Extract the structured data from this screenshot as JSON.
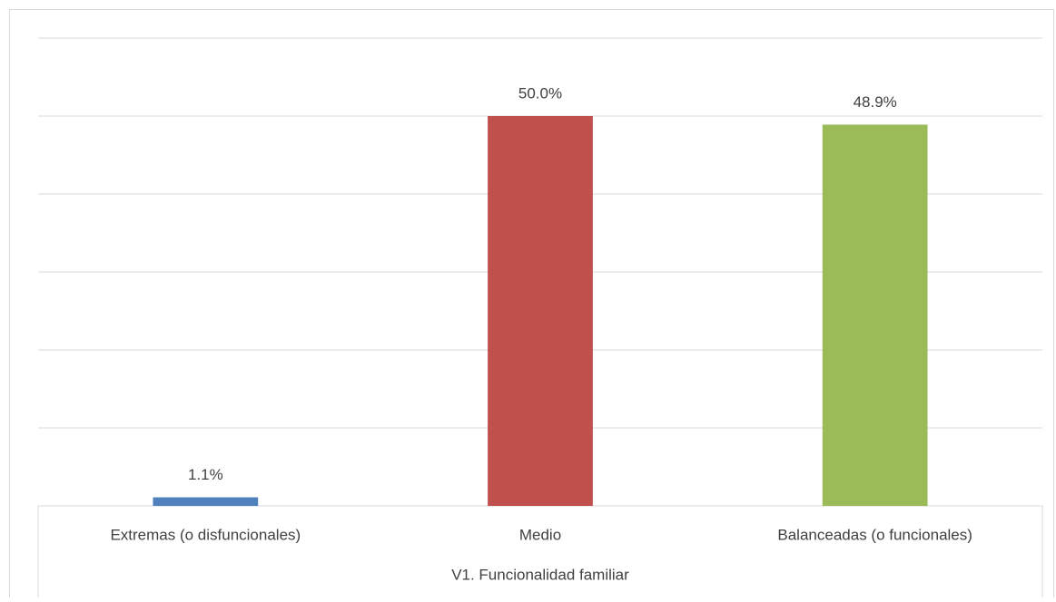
{
  "chart_data": {
    "type": "bar",
    "categories": [
      "Extremas (o disfuncionales)",
      "Medio",
      "Balanceadas (o funcionales)"
    ],
    "values": [
      1.1,
      50.0,
      48.9
    ],
    "value_labels": [
      "1.1%",
      "50.0%",
      "48.9%"
    ],
    "colors": [
      "#4f81bd",
      "#c0504d",
      "#9bbb59"
    ],
    "x_label": "V1. Funcionalidad familiar",
    "ylim": [
      0,
      60
    ],
    "yticks": [
      0,
      10,
      20,
      30,
      40,
      50,
      60
    ],
    "grid": true
  }
}
